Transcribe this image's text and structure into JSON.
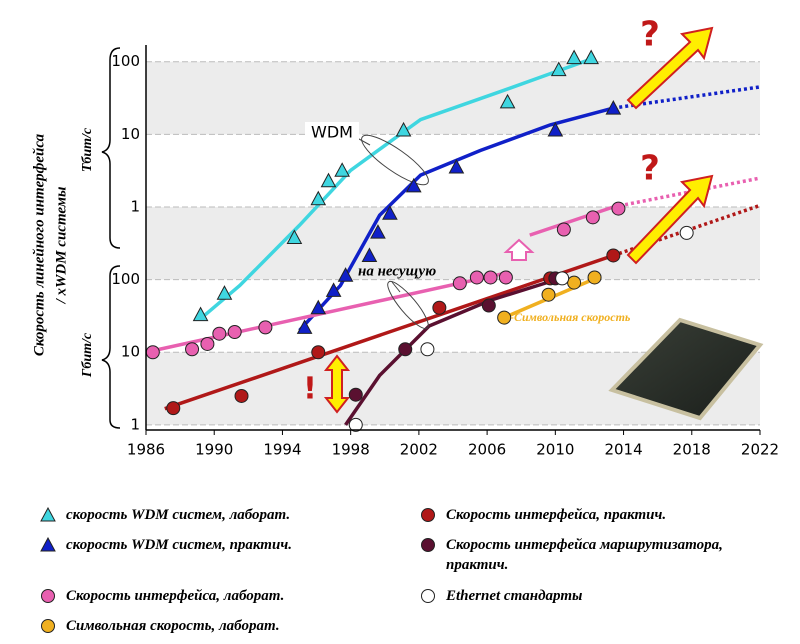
{
  "chart_data": {
    "type": "scatter",
    "y_label_lines": [
      "Скорость линейного интерфейса",
      "/ xWDM системы"
    ],
    "y_group_labels": [
      "Тбит/с",
      "Гбит/с"
    ],
    "xlim": [
      1986,
      2022
    ],
    "xticks": [
      1986,
      1990,
      1994,
      1998,
      2002,
      2006,
      2010,
      2014,
      2018,
      2022
    ],
    "ylim": [
      0.85,
      170000
    ],
    "log_y": true,
    "yticks": [
      1,
      10,
      100,
      {
        "value": 1000,
        "label": "1"
      },
      {
        "value": 10000,
        "label": "10"
      },
      {
        "value": 100000,
        "label": "100"
      }
    ],
    "series": [
      {
        "name": "скорость WDM систем, лаборат.",
        "color": "#3fd6e0",
        "marker": "triangle",
        "x": [
          1989.2,
          1990.6,
          1994.7,
          1996.1,
          1996.7,
          1997.5,
          2001.1,
          2007.2,
          2010.2,
          2011.1,
          2012.1
        ],
        "values": [
          33,
          65,
          380,
          1300,
          2300,
          3200,
          11500,
          28000,
          78000,
          114000,
          114000
        ]
      },
      {
        "name": "скорость WDM систем, практич.",
        "color": "#1020c8",
        "marker": "triangle",
        "x": [
          1995.3,
          1996.1,
          1997,
          1997.7,
          1999.1,
          1999.6,
          2000.3,
          2001.7,
          2004.2,
          2010,
          2013.4
        ],
        "values": [
          22,
          41,
          71,
          115,
          215,
          450,
          820,
          1950,
          3550,
          11500,
          23000
        ]
      },
      {
        "name": "Скорость интерфейса,  лаборат.",
        "color": "#e860b0",
        "marker": "circle",
        "x": [
          1986.4,
          1988.7,
          1989.6,
          1990.3,
          1991.2,
          1993,
          2004.4,
          2005.4,
          2006.2,
          2007.1,
          2010.5,
          2012.2,
          2013.7
        ],
        "values": [
          10,
          11,
          13,
          18,
          19,
          22,
          89,
          107,
          107,
          107,
          490,
          720,
          950
        ]
      },
      {
        "name": "Символьная скорость,  лаборат.",
        "color": "#f0b020",
        "marker": "circle",
        "x": [
          2007,
          2009.6,
          2011.1,
          2012.3
        ],
        "values": [
          30,
          62,
          91,
          107
        ]
      },
      {
        "name": "Скорость интерфейса, практич.",
        "color": "#b01818",
        "marker": "circle",
        "x": [
          1987.6,
          1991.6,
          1996.1,
          2003.2,
          2009.7,
          2013.4
        ],
        "values": [
          1.7,
          2.5,
          10,
          41,
          104,
          215
        ]
      },
      {
        "name": "Скорость интерфейса маршрутизатора, практич.",
        "color": "#5a1030",
        "marker": "circle",
        "x": [
          1998.3,
          2001.2,
          2006.1,
          2010
        ],
        "values": [
          2.6,
          11,
          44,
          104
        ]
      },
      {
        "name": "Ethernet стандарты",
        "color": "#ffffff",
        "marker": "circle",
        "x": [
          1998.3,
          2002.5,
          2010.4,
          2017.7
        ],
        "values": [
          1,
          11,
          104,
          440
        ]
      }
    ],
    "trend_lines": [
      {
        "color": "#3fd6e0",
        "style": "solid",
        "x": [
          1989.2,
          1991.5,
          1995,
          1998,
          2002.1,
          2006.8,
          2012
        ],
        "values": [
          29,
          83,
          560,
          3200,
          16000,
          39000,
          107000
        ]
      },
      {
        "color": "#1020c8",
        "style": "solid",
        "x": [
          1995,
          1997.4,
          1999.7,
          2002.1,
          2005.6,
          2009.7,
          2013.4
        ],
        "values": [
          20,
          83,
          770,
          2750,
          6000,
          13500,
          23000
        ]
      },
      {
        "color": "#1020c8",
        "style": "dotted",
        "x": [
          2013.4,
          2022
        ],
        "values": [
          23000,
          45000
        ]
      },
      {
        "color": "#e860b0",
        "style": "solid",
        "x": [
          1986,
          2007.3
        ],
        "values": [
          10,
          126
        ]
      },
      {
        "color": "#e860b0",
        "style": "solid",
        "x": [
          2008.5,
          2013.4
        ],
        "values": [
          410,
          1000
        ]
      },
      {
        "color": "#e860b0",
        "style": "dotted",
        "x": [
          2013.4,
          2022
        ],
        "values": [
          1000,
          2500
        ]
      },
      {
        "color": "#b01818",
        "style": "solid",
        "x": [
          1987.1,
          2013.4
        ],
        "values": [
          1.67,
          215
        ]
      },
      {
        "color": "#b01818",
        "style": "dotted",
        "x": [
          2013.4,
          2022
        ],
        "values": [
          215,
          1050
        ]
      },
      {
        "color": "#5a1030",
        "style": "solid",
        "x": [
          1997.7,
          1999.7,
          2002.6,
          2006.2,
          2010.3
        ],
        "values": [
          1,
          4.8,
          23,
          52,
          104
        ]
      },
      {
        "color": "#f0b020",
        "style": "solid",
        "x": [
          2007,
          2012.6
        ],
        "values": [
          30,
          110
        ]
      }
    ],
    "annotations": {
      "wdm": "WDM",
      "carrier": "на несущую",
      "symbol_rate": "-Символьная скорость",
      "question": "?",
      "exclaim": "!"
    }
  }
}
